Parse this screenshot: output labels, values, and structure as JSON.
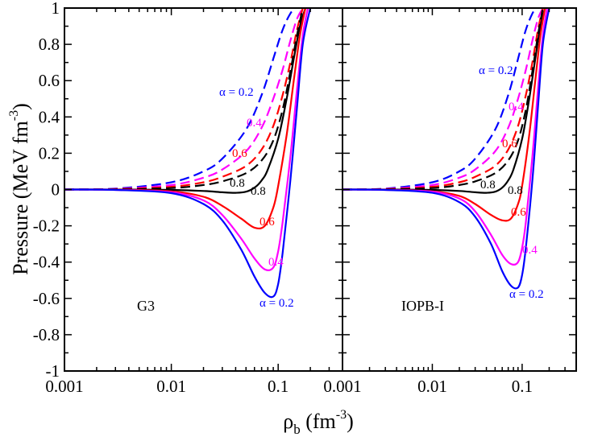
{
  "chart_data": [
    {
      "type": "line",
      "panel": "left",
      "model_label": "G3",
      "xscale": "log",
      "xlim": [
        0.001,
        0.4
      ],
      "ylim": [
        -1,
        1
      ],
      "x_ticks": [
        "0.001",
        "0.01",
        "0.1"
      ],
      "y_ticks": [
        "1",
        "0.8",
        "0.6",
        "0.4",
        "0.2",
        "0",
        "-0.2",
        "-0.4",
        "-0.6",
        "-0.8",
        "-1"
      ],
      "annotations": {
        "alpha_label_dashed": "α = 0.2",
        "alpha_label_solid": "α = 0.2",
        "dashed_labels": [
          "0.4",
          "0.6",
          "0.8"
        ],
        "solid_labels": [
          "0.4",
          "0.6",
          "0.8"
        ]
      },
      "series": [
        {
          "name": "α = 0.2 (dashed)",
          "alpha": 0.2,
          "color": "#0000ff",
          "dash": true,
          "x": [
            0.001,
            0.003,
            0.01,
            0.02,
            0.03,
            0.05,
            0.07,
            0.09,
            0.11,
            0.13,
            0.145
          ],
          "y": [
            0.0,
            0.005,
            0.04,
            0.1,
            0.17,
            0.33,
            0.52,
            0.72,
            0.88,
            0.97,
            1.0
          ]
        },
        {
          "name": "α = 0.4 (dashed)",
          "alpha": 0.4,
          "color": "#ff00ff",
          "dash": true,
          "x": [
            0.001,
            0.003,
            0.01,
            0.02,
            0.03,
            0.05,
            0.07,
            0.09,
            0.11,
            0.13,
            0.15,
            0.17
          ],
          "y": [
            0.0,
            0.003,
            0.025,
            0.065,
            0.11,
            0.21,
            0.34,
            0.5,
            0.66,
            0.82,
            0.94,
            1.0
          ]
        },
        {
          "name": "α = 0.6 (dashed)",
          "alpha": 0.6,
          "color": "#ff0000",
          "dash": true,
          "x": [
            0.001,
            0.003,
            0.01,
            0.02,
            0.03,
            0.05,
            0.07,
            0.09,
            0.11,
            0.13,
            0.15,
            0.17
          ],
          "y": [
            0.0,
            0.002,
            0.015,
            0.04,
            0.07,
            0.13,
            0.22,
            0.35,
            0.52,
            0.7,
            0.88,
            1.0
          ]
        },
        {
          "name": "α = 0.8 (dashed)",
          "alpha": 0.8,
          "color": "#000000",
          "dash": true,
          "x": [
            0.001,
            0.003,
            0.01,
            0.02,
            0.03,
            0.05,
            0.07,
            0.09,
            0.11,
            0.13,
            0.15,
            0.17
          ],
          "y": [
            0.0,
            0.001,
            0.008,
            0.025,
            0.045,
            0.09,
            0.16,
            0.27,
            0.44,
            0.65,
            0.85,
            1.0
          ]
        },
        {
          "name": "α = 0.8 (solid)",
          "alpha": 0.8,
          "color": "#000000",
          "dash": false,
          "x": [
            0.001,
            0.003,
            0.01,
            0.02,
            0.03,
            0.04,
            0.05,
            0.06,
            0.07,
            0.08,
            0.1,
            0.12,
            0.14,
            0.16,
            0.18
          ],
          "y": [
            0.0,
            0.0,
            -0.002,
            -0.008,
            -0.015,
            -0.018,
            -0.012,
            0.01,
            0.05,
            0.11,
            0.28,
            0.5,
            0.72,
            0.9,
            1.0
          ]
        },
        {
          "name": "α = 0.6 (solid)",
          "alpha": 0.6,
          "color": "#ff0000",
          "dash": false,
          "x": [
            0.001,
            0.003,
            0.01,
            0.02,
            0.03,
            0.045,
            0.06,
            0.075,
            0.09,
            0.1,
            0.12,
            0.14,
            0.16,
            0.18
          ],
          "y": [
            0.0,
            -0.001,
            -0.01,
            -0.04,
            -0.09,
            -0.16,
            -0.21,
            -0.2,
            -0.1,
            0.02,
            0.3,
            0.6,
            0.85,
            1.0
          ]
        },
        {
          "name": "α = 0.4 (solid)",
          "alpha": 0.4,
          "color": "#ff00ff",
          "dash": false,
          "x": [
            0.001,
            0.003,
            0.01,
            0.02,
            0.03,
            0.045,
            0.06,
            0.075,
            0.09,
            0.1,
            0.11,
            0.13,
            0.15,
            0.17,
            0.19
          ],
          "y": [
            0.0,
            -0.002,
            -0.015,
            -0.06,
            -0.14,
            -0.27,
            -0.38,
            -0.44,
            -0.43,
            -0.34,
            -0.18,
            0.18,
            0.55,
            0.85,
            1.0
          ]
        },
        {
          "name": "α = 0.2 (solid)",
          "alpha": 0.2,
          "color": "#0000ff",
          "dash": false,
          "x": [
            0.001,
            0.003,
            0.01,
            0.02,
            0.03,
            0.045,
            0.06,
            0.075,
            0.09,
            0.1,
            0.11,
            0.13,
            0.15,
            0.17,
            0.2
          ],
          "y": [
            0.0,
            -0.002,
            -0.02,
            -0.08,
            -0.17,
            -0.33,
            -0.48,
            -0.57,
            -0.59,
            -0.52,
            -0.35,
            0.05,
            0.45,
            0.8,
            1.0
          ]
        }
      ]
    },
    {
      "type": "line",
      "panel": "right",
      "model_label": "IOPB-I",
      "xscale": "log",
      "xlim": [
        0.001,
        0.4
      ],
      "ylim": [
        -1,
        1
      ],
      "x_ticks": [
        "0.001",
        "0.01",
        "0.1"
      ],
      "y_ticks": [],
      "annotations": {
        "alpha_label_dashed": "α = 0.2",
        "alpha_label_solid": "α = 0.2",
        "dashed_labels": [
          "0.4",
          "0.6",
          "0.8"
        ],
        "solid_labels": [
          "0.4",
          "0.6",
          "0.8"
        ]
      },
      "series": [
        {
          "name": "α = 0.2 (dashed)",
          "alpha": 0.2,
          "color": "#0000ff",
          "dash": true,
          "x": [
            0.001,
            0.003,
            0.01,
            0.02,
            0.03,
            0.05,
            0.07,
            0.09,
            0.11,
            0.13,
            0.145
          ],
          "y": [
            0.0,
            0.005,
            0.04,
            0.1,
            0.17,
            0.33,
            0.52,
            0.72,
            0.88,
            0.97,
            1.0
          ]
        },
        {
          "name": "α = 0.4 (dashed)",
          "alpha": 0.4,
          "color": "#ff00ff",
          "dash": true,
          "x": [
            0.001,
            0.003,
            0.01,
            0.02,
            0.03,
            0.05,
            0.07,
            0.09,
            0.11,
            0.13,
            0.15,
            0.17
          ],
          "y": [
            0.0,
            0.003,
            0.025,
            0.065,
            0.11,
            0.21,
            0.34,
            0.5,
            0.66,
            0.82,
            0.94,
            1.0
          ]
        },
        {
          "name": "α = 0.6 (dashed)",
          "alpha": 0.6,
          "color": "#ff0000",
          "dash": true,
          "x": [
            0.001,
            0.003,
            0.01,
            0.02,
            0.03,
            0.05,
            0.07,
            0.09,
            0.11,
            0.13,
            0.15,
            0.17
          ],
          "y": [
            0.0,
            0.002,
            0.015,
            0.04,
            0.07,
            0.13,
            0.22,
            0.35,
            0.52,
            0.7,
            0.88,
            1.0
          ]
        },
        {
          "name": "α = 0.8 (dashed)",
          "alpha": 0.8,
          "color": "#000000",
          "dash": true,
          "x": [
            0.001,
            0.003,
            0.01,
            0.02,
            0.03,
            0.05,
            0.07,
            0.09,
            0.11,
            0.13,
            0.15,
            0.17
          ],
          "y": [
            0.0,
            0.001,
            0.008,
            0.025,
            0.045,
            0.09,
            0.16,
            0.27,
            0.44,
            0.65,
            0.85,
            1.0
          ]
        },
        {
          "name": "α = 0.8 (solid)",
          "alpha": 0.8,
          "color": "#000000",
          "dash": false,
          "x": [
            0.001,
            0.003,
            0.01,
            0.02,
            0.03,
            0.04,
            0.05,
            0.06,
            0.07,
            0.08,
            0.1,
            0.12,
            0.14,
            0.16,
            0.18
          ],
          "y": [
            0.0,
            0.0,
            -0.002,
            -0.008,
            -0.015,
            -0.018,
            -0.012,
            0.01,
            0.05,
            0.11,
            0.28,
            0.5,
            0.72,
            0.9,
            1.0
          ]
        },
        {
          "name": "α = 0.6 (solid)",
          "alpha": 0.6,
          "color": "#ff0000",
          "dash": false,
          "x": [
            0.001,
            0.003,
            0.01,
            0.02,
            0.03,
            0.045,
            0.06,
            0.075,
            0.09,
            0.1,
            0.12,
            0.14,
            0.16,
            0.18
          ],
          "y": [
            0.0,
            -0.001,
            -0.01,
            -0.035,
            -0.08,
            -0.14,
            -0.17,
            -0.16,
            -0.08,
            0.02,
            0.3,
            0.6,
            0.85,
            1.0
          ]
        },
        {
          "name": "α = 0.4 (solid)",
          "alpha": 0.4,
          "color": "#ff00ff",
          "dash": false,
          "x": [
            0.001,
            0.003,
            0.01,
            0.02,
            0.03,
            0.045,
            0.06,
            0.075,
            0.09,
            0.1,
            0.11,
            0.13,
            0.15,
            0.17,
            0.19
          ],
          "y": [
            0.0,
            -0.002,
            -0.012,
            -0.05,
            -0.12,
            -0.25,
            -0.36,
            -0.41,
            -0.4,
            -0.32,
            -0.18,
            0.18,
            0.55,
            0.85,
            1.0
          ]
        },
        {
          "name": "α = 0.2 (solid)",
          "alpha": 0.2,
          "color": "#0000ff",
          "dash": false,
          "x": [
            0.001,
            0.003,
            0.01,
            0.02,
            0.03,
            0.045,
            0.06,
            0.075,
            0.09,
            0.1,
            0.11,
            0.13,
            0.15,
            0.17,
            0.2
          ],
          "y": [
            0.0,
            -0.002,
            -0.018,
            -0.07,
            -0.15,
            -0.3,
            -0.45,
            -0.53,
            -0.54,
            -0.47,
            -0.32,
            0.05,
            0.45,
            0.8,
            1.0
          ]
        }
      ]
    }
  ],
  "axes": {
    "ylabel": "Pressure (MeV fm",
    "ylabel_exp": "-3",
    "ylabel_close": ")",
    "xlabel_symbol": "ρ",
    "xlabel_sub": "b",
    "xlabel_unit": " (fm",
    "xlabel_exp": "-3",
    "xlabel_close": ")"
  }
}
